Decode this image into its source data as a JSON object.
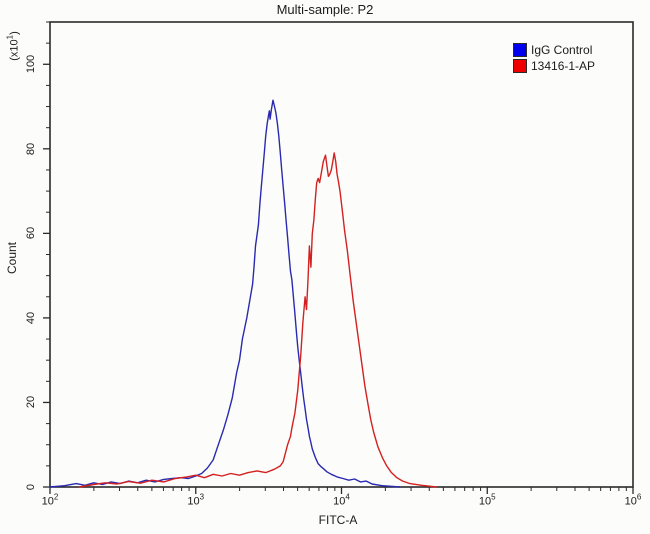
{
  "chart_data": {
    "type": "line",
    "subtype": "flow-cytometry-histogram",
    "title": "Multi-sample: P2",
    "xlabel": "FITC-A",
    "ylabel": "Count",
    "y_multiplier": {
      "prefix": "(x10",
      "exp": "1",
      "suffix": ")"
    },
    "x_scale": "log",
    "xlim_log": [
      2,
      6
    ],
    "ylim": [
      0,
      110
    ],
    "grid": false,
    "legend_position": "top-right-inside",
    "x_ticks": [
      {
        "base": "10",
        "exp": "2",
        "log": 2
      },
      {
        "base": "10",
        "exp": "3",
        "log": 3
      },
      {
        "base": "10",
        "exp": "4",
        "log": 4
      },
      {
        "base": "10",
        "exp": "5",
        "log": 5
      },
      {
        "base": "10",
        "exp": "6",
        "log": 6
      }
    ],
    "y_ticks": [
      {
        "label": "0",
        "value": 0
      },
      {
        "label": "20",
        "value": 20
      },
      {
        "label": "40",
        "value": 40
      },
      {
        "label": "60",
        "value": 60
      },
      {
        "label": "80",
        "value": 80
      },
      {
        "label": "100",
        "value": 100
      }
    ],
    "y_minor_step": 5,
    "legend": [
      {
        "label": "IgG Control",
        "color": "#0000ee"
      },
      {
        "label": "13416-1-AP",
        "color": "#ee0000"
      }
    ],
    "axis_color": "#2a2a2a",
    "series": [
      {
        "name": "IgG Control",
        "color": "#2a2ab0",
        "points": [
          [
            2.0,
            0
          ],
          [
            2.1,
            0.3
          ],
          [
            2.18,
            0.8
          ],
          [
            2.24,
            0.4
          ],
          [
            2.3,
            1.0
          ],
          [
            2.36,
            0.6
          ],
          [
            2.42,
            1.2
          ],
          [
            2.48,
            0.8
          ],
          [
            2.54,
            1.4
          ],
          [
            2.6,
            1.0
          ],
          [
            2.66,
            1.6
          ],
          [
            2.72,
            1.2
          ],
          [
            2.78,
            1.8
          ],
          [
            2.84,
            2.0
          ],
          [
            2.9,
            2.2
          ],
          [
            2.95,
            2.0
          ],
          [
            3.0,
            2.6
          ],
          [
            3.04,
            3.2
          ],
          [
            3.08,
            4.5
          ],
          [
            3.12,
            6.4
          ],
          [
            3.15,
            9.5
          ],
          [
            3.19,
            13.5
          ],
          [
            3.22,
            17
          ],
          [
            3.25,
            21
          ],
          [
            3.28,
            27
          ],
          [
            3.3,
            30
          ],
          [
            3.32,
            35
          ],
          [
            3.35,
            40
          ],
          [
            3.37,
            44
          ],
          [
            3.39,
            48
          ],
          [
            3.4,
            52
          ],
          [
            3.41,
            57
          ],
          [
            3.43,
            62
          ],
          [
            3.44,
            67
          ],
          [
            3.45,
            71
          ],
          [
            3.46,
            75
          ],
          [
            3.47,
            79
          ],
          [
            3.48,
            83
          ],
          [
            3.49,
            86
          ],
          [
            3.5,
            88
          ],
          [
            3.505,
            89
          ],
          [
            3.51,
            87
          ],
          [
            3.52,
            89.5
          ],
          [
            3.53,
            91.5
          ],
          [
            3.54,
            90
          ],
          [
            3.55,
            88.5
          ],
          [
            3.56,
            86
          ],
          [
            3.57,
            83
          ],
          [
            3.58,
            79
          ],
          [
            3.59,
            75
          ],
          [
            3.6,
            71
          ],
          [
            3.61,
            67
          ],
          [
            3.62,
            63
          ],
          [
            3.63,
            59
          ],
          [
            3.64,
            55
          ],
          [
            3.65,
            51
          ],
          [
            3.66,
            49
          ],
          [
            3.67,
            45
          ],
          [
            3.68,
            41
          ],
          [
            3.69,
            37
          ],
          [
            3.7,
            33
          ],
          [
            3.71,
            30
          ],
          [
            3.72,
            27
          ],
          [
            3.73,
            24
          ],
          [
            3.74,
            21
          ],
          [
            3.75,
            18.5
          ],
          [
            3.76,
            16
          ],
          [
            3.77,
            14
          ],
          [
            3.78,
            12
          ],
          [
            3.79,
            10.5
          ],
          [
            3.8,
            9
          ],
          [
            3.82,
            7
          ],
          [
            3.84,
            5.5
          ],
          [
            3.86,
            4.8
          ],
          [
            3.88,
            4.2
          ],
          [
            3.9,
            3.6
          ],
          [
            3.93,
            3.0
          ],
          [
            3.97,
            2.4
          ],
          [
            4.01,
            2.0
          ],
          [
            4.05,
            1.6
          ],
          [
            4.09,
            1.9
          ],
          [
            4.13,
            1.2
          ],
          [
            4.17,
            1.4
          ],
          [
            4.21,
            0.7
          ],
          [
            4.28,
            0.3
          ],
          [
            4.4,
            0
          ]
        ]
      },
      {
        "name": "13416-1-AP",
        "color": "#d32020",
        "points": [
          [
            2.2,
            0
          ],
          [
            2.3,
            0.6
          ],
          [
            2.38,
            1.0
          ],
          [
            2.46,
            0.7
          ],
          [
            2.54,
            1.3
          ],
          [
            2.62,
            0.9
          ],
          [
            2.7,
            1.6
          ],
          [
            2.78,
            1.2
          ],
          [
            2.86,
            2.0
          ],
          [
            2.94,
            2.4
          ],
          [
            3.0,
            2.8
          ],
          [
            3.06,
            2.2
          ],
          [
            3.12,
            3.0
          ],
          [
            3.18,
            2.6
          ],
          [
            3.24,
            3.2
          ],
          [
            3.3,
            2.8
          ],
          [
            3.36,
            3.4
          ],
          [
            3.42,
            3.8
          ],
          [
            3.48,
            3.4
          ],
          [
            3.54,
            4.2
          ],
          [
            3.58,
            5.0
          ],
          [
            3.6,
            6.0
          ],
          [
            3.63,
            10
          ],
          [
            3.65,
            12
          ],
          [
            3.66,
            14
          ],
          [
            3.68,
            17.5
          ],
          [
            3.7,
            23
          ],
          [
            3.71,
            27
          ],
          [
            3.72,
            31
          ],
          [
            3.735,
            39
          ],
          [
            3.75,
            45
          ],
          [
            3.76,
            42
          ],
          [
            3.77,
            49
          ],
          [
            3.78,
            57
          ],
          [
            3.79,
            52
          ],
          [
            3.8,
            60
          ],
          [
            3.81,
            63
          ],
          [
            3.82,
            68
          ],
          [
            3.83,
            72
          ],
          [
            3.84,
            73
          ],
          [
            3.85,
            72
          ],
          [
            3.86,
            74
          ],
          [
            3.875,
            77
          ],
          [
            3.89,
            78.5
          ],
          [
            3.9,
            76
          ],
          [
            3.91,
            73.5
          ],
          [
            3.92,
            74
          ],
          [
            3.93,
            75
          ],
          [
            3.94,
            77
          ],
          [
            3.95,
            79
          ],
          [
            3.96,
            77
          ],
          [
            3.97,
            74
          ],
          [
            3.98,
            72
          ],
          [
            3.99,
            70
          ],
          [
            4.0,
            67
          ],
          [
            4.01,
            64
          ],
          [
            4.02,
            61
          ],
          [
            4.04,
            56
          ],
          [
            4.06,
            50
          ],
          [
            4.08,
            44
          ],
          [
            4.1,
            39
          ],
          [
            4.12,
            34
          ],
          [
            4.14,
            29
          ],
          [
            4.16,
            24
          ],
          [
            4.18,
            20
          ],
          [
            4.2,
            16
          ],
          [
            4.22,
            13
          ],
          [
            4.25,
            9.5
          ],
          [
            4.28,
            7
          ],
          [
            4.31,
            5
          ],
          [
            4.34,
            3.5
          ],
          [
            4.38,
            2.2
          ],
          [
            4.42,
            1.4
          ],
          [
            4.47,
            0.8
          ],
          [
            4.55,
            0.4
          ],
          [
            4.65,
            0
          ]
        ]
      }
    ]
  }
}
